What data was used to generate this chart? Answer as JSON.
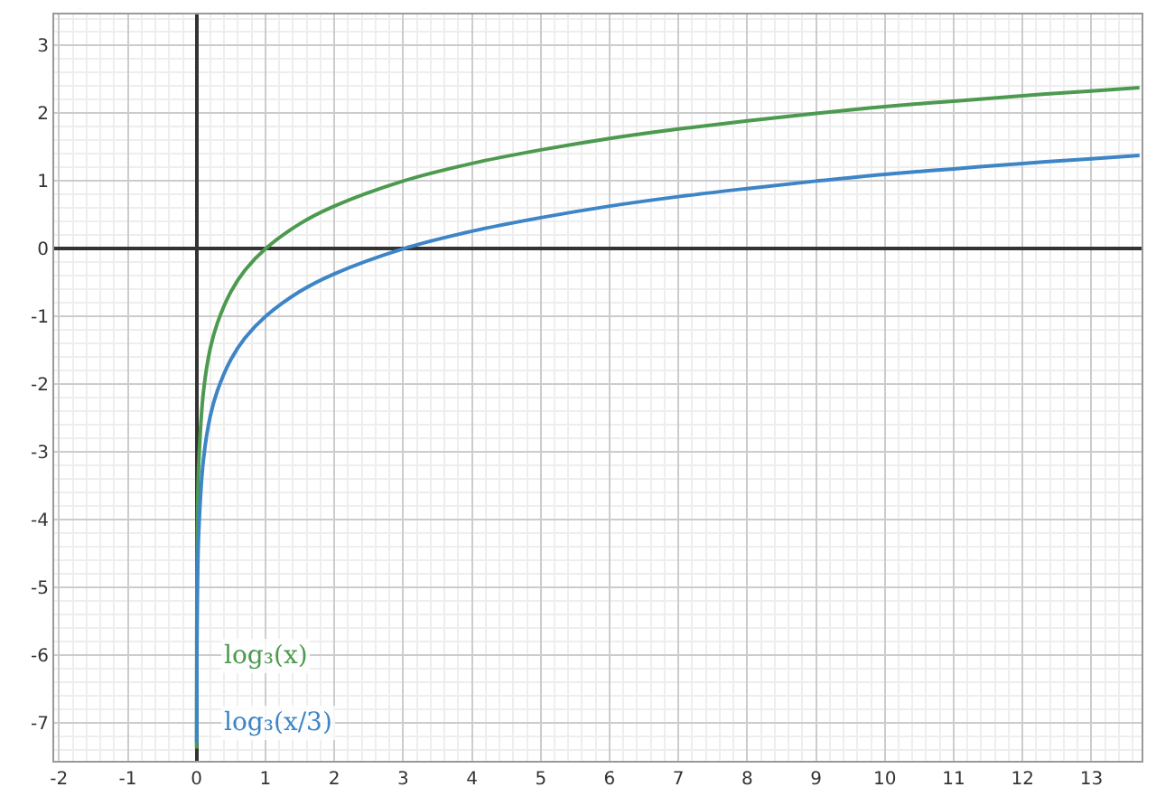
{
  "chart_data": {
    "type": "line",
    "xlim": [
      -2.07,
      13.73
    ],
    "ylim": [
      -7.56,
      3.46
    ],
    "xticks": [
      -2,
      -1,
      0,
      1,
      2,
      3,
      4,
      5,
      6,
      7,
      8,
      9,
      10,
      11,
      12,
      13
    ],
    "yticks": [
      -7,
      -6,
      -5,
      -4,
      -3,
      -2,
      -1,
      0,
      1,
      2,
      3
    ],
    "grid": true,
    "marker": "none",
    "line_style": "solid",
    "series": [
      {
        "name": "log₃(x)",
        "color": "#4c9a4f",
        "x": [
          0.0003,
          0.001,
          0.003,
          0.01,
          0.03,
          0.1,
          0.2,
          0.3,
          0.5,
          0.7,
          1,
          1.5,
          2,
          3,
          4,
          5,
          6,
          7,
          8,
          9,
          10,
          11,
          12,
          13,
          13.7
        ],
        "values": [
          -7.38,
          -6.29,
          -5.29,
          -4.19,
          -3.19,
          -2.1,
          -1.46,
          -1.1,
          -0.63,
          -0.32,
          0,
          0.37,
          0.63,
          1,
          1.26,
          1.46,
          1.63,
          1.77,
          1.89,
          2,
          2.1,
          2.18,
          2.26,
          2.33,
          2.38
        ]
      },
      {
        "name": "log₃(x/3)",
        "color": "#3d85c6",
        "x": [
          0.001,
          0.003,
          0.01,
          0.03,
          0.1,
          0.2,
          0.3,
          0.5,
          0.7,
          1,
          1.5,
          2,
          3,
          4,
          5,
          6,
          7,
          8,
          9,
          10,
          11,
          12,
          13,
          13.7
        ],
        "values": [
          -7.29,
          -6.29,
          -5.19,
          -4.19,
          -3.1,
          -2.46,
          -2.1,
          -1.63,
          -1.32,
          -1,
          -0.63,
          -0.37,
          0,
          0.26,
          0.46,
          0.63,
          0.77,
          0.89,
          1,
          1.1,
          1.18,
          1.26,
          1.33,
          1.38
        ]
      }
    ]
  }
}
